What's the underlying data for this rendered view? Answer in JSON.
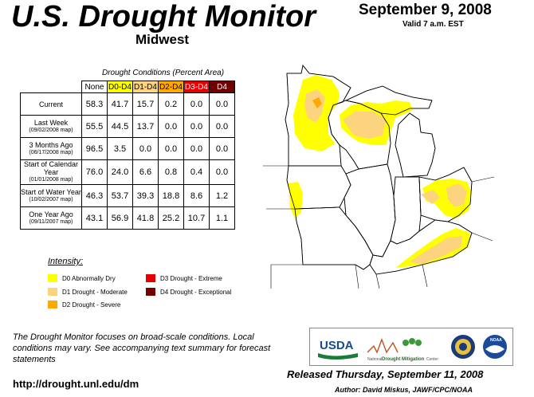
{
  "header": {
    "title": "U.S. Drought Monitor",
    "region": "Midwest",
    "date": "September 9, 2008",
    "valid": "Valid 7 a.m. EST"
  },
  "table": {
    "caption": "Drought Conditions (Percent Area)",
    "columns": [
      "None",
      "D0-D4",
      "D1-D4",
      "D2-D4",
      "D3-D4",
      "D4"
    ],
    "column_colors": [
      "#ffffff",
      "#ffff00",
      "#fcd37f",
      "#ffaa00",
      "#e60000",
      "#730000"
    ],
    "rows": [
      {
        "label": "Current",
        "sub": "",
        "values": [
          "58.3",
          "41.7",
          "15.7",
          "0.2",
          "0.0",
          "0.0"
        ]
      },
      {
        "label": "Last Week",
        "sub": "(09/02/2008 map)",
        "values": [
          "55.5",
          "44.5",
          "13.7",
          "0.0",
          "0.0",
          "0.0"
        ]
      },
      {
        "label": "3 Months Ago",
        "sub": "(06/17/2008 map)",
        "values": [
          "96.5",
          "3.5",
          "0.0",
          "0.0",
          "0.0",
          "0.0"
        ]
      },
      {
        "label": "Start of Calendar Year",
        "sub": "(01/01/2008 map)",
        "values": [
          "76.0",
          "24.0",
          "6.6",
          "0.8",
          "0.4",
          "0.0"
        ]
      },
      {
        "label": "Start of Water Year",
        "sub": "(10/02/2007 map)",
        "values": [
          "46.3",
          "53.7",
          "39.3",
          "18.8",
          "8.6",
          "1.2"
        ]
      },
      {
        "label": "One Year Ago",
        "sub": "(09/11/2007 map)",
        "values": [
          "43.1",
          "56.9",
          "41.8",
          "25.2",
          "10.7",
          "1.1"
        ]
      }
    ]
  },
  "legend": {
    "title": "Intensity:",
    "items": [
      {
        "label": "D0 Abnormally Dry",
        "color": "#ffff00"
      },
      {
        "label": "D1 Drought - Moderate",
        "color": "#fcd37f"
      },
      {
        "label": "D2 Drought - Severe",
        "color": "#ffaa00"
      },
      {
        "label": "D3 Drought - Extreme",
        "color": "#e60000"
      },
      {
        "label": "D4 Drought - Exceptional",
        "color": "#730000"
      }
    ]
  },
  "footer": {
    "note": "The Drought Monitor focuses on broad-scale conditions. Local conditions may vary. See accompanying text summary for forecast statements",
    "url": "http://drought.unl.edu/dm",
    "released": "Released Thursday, September 11, 2008",
    "author": "Author: David Miskus, JAWF/CPC/NOAA"
  },
  "logos": {
    "usda": "USDA",
    "ndmc_prefix": "National",
    "ndmc_main": "Drought Mitigation",
    "ndmc_suffix": "Center",
    "noaa": "NOAA"
  }
}
